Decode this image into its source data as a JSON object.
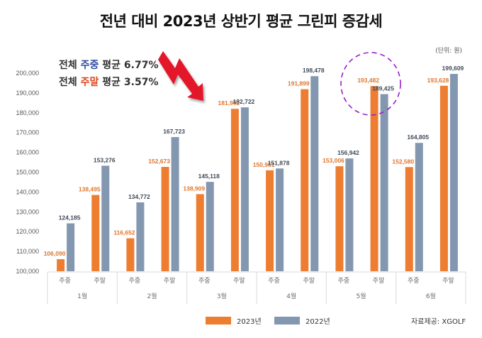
{
  "header": {
    "title": "전년 대비 2023년 상반기 평균 그린피 증감세",
    "unit": "(단위: 원)"
  },
  "summary": [
    {
      "prefix": "전체 ",
      "highlight": "주중",
      "highlight_color": "#2F4AA0",
      "suffix": " 평균 6.77%"
    },
    {
      "prefix": "전체 ",
      "highlight": "주말",
      "highlight_color": "#E0451D",
      "suffix": " 평균 3.57%"
    }
  ],
  "source": "자료제공: XGOLF",
  "annotations": {
    "trend_arrow": "down-trend-arrow",
    "trend_arrow_color": "#E3192C",
    "highlight_circle": {
      "target": "5월 주말",
      "color": "#9B1FC9",
      "style": "dashed"
    }
  },
  "chart_data": {
    "type": "bar",
    "title": "전년 대비 2023년 상반기 평균 그린피 증감세",
    "xlabel": "",
    "ylabel": "",
    "unit": "원",
    "ylim": [
      100000,
      200000
    ],
    "yticks": [
      100000,
      110000,
      120000,
      130000,
      140000,
      150000,
      160000,
      170000,
      180000,
      190000,
      200000
    ],
    "ytick_labels": [
      "100,000",
      "110,000",
      "120,000",
      "130,000",
      "140,000",
      "150,000",
      "160,000",
      "170,000",
      "180,000",
      "190,000",
      "200,000"
    ],
    "grid": false,
    "legend_position": "bottom-center",
    "groups": [
      "1월",
      "2월",
      "3월",
      "4월",
      "5월",
      "6월"
    ],
    "subcategories": [
      "주중",
      "주말"
    ],
    "categories": [
      "1월 주중",
      "1월 주말",
      "2월 주중",
      "2월 주말",
      "3월 주중",
      "3월 주말",
      "4월 주중",
      "4월 주말",
      "5월 주중",
      "5월 주말",
      "6월 주중",
      "6월 주말"
    ],
    "series": [
      {
        "name": "2023년",
        "color": "#ED7D31",
        "label_color": "#E0762C",
        "values": [
          106090,
          138495,
          116652,
          152673,
          138909,
          181992,
          150961,
          191899,
          153006,
          193482,
          152580,
          193628
        ],
        "labels": [
          "106,090",
          "138,495",
          "116,652",
          "152,673",
          "138,909",
          "181,992",
          "150,961",
          "191,899",
          "153,006",
          "193,482",
          "152,580",
          "193,628"
        ]
      },
      {
        "name": "2022년",
        "color": "#8497B0",
        "label_color": "#404A5A",
        "values": [
          124185,
          153276,
          134772,
          167723,
          145118,
          182722,
          151878,
          198478,
          156942,
          189425,
          164805,
          199609
        ],
        "labels": [
          "124,185",
          "153,276",
          "134,772",
          "167,723",
          "145,118",
          "182,722",
          "151,878",
          "198,478",
          "156,942",
          "189,425",
          "164,805",
          "199,609"
        ]
      }
    ]
  }
}
